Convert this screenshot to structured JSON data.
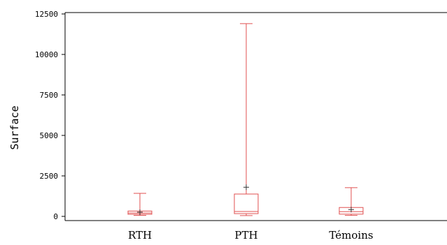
{
  "chart_data": {
    "type": "boxplot",
    "title": "",
    "xlabel": "",
    "ylabel": "Surface",
    "ylim": [
      0,
      12500
    ],
    "yticks": [
      0,
      2500,
      5000,
      7500,
      10000,
      12500
    ],
    "categories": [
      "RTH",
      "PTH",
      "Témoins"
    ],
    "box_color": "#e05050",
    "mean_color": "#333333",
    "grid": false,
    "legend": "none",
    "boxes": [
      {
        "category": "RTH",
        "min": 60,
        "q1": 130,
        "median": 210,
        "q3": 330,
        "max": 1420,
        "mean": 260
      },
      {
        "category": "PTH",
        "min": 50,
        "q1": 170,
        "median": 300,
        "q3": 1380,
        "max": 11900,
        "mean": 1800
      },
      {
        "category": "Témoins",
        "min": 60,
        "q1": 140,
        "median": 290,
        "q3": 550,
        "max": 1770,
        "mean": 420
      }
    ]
  }
}
